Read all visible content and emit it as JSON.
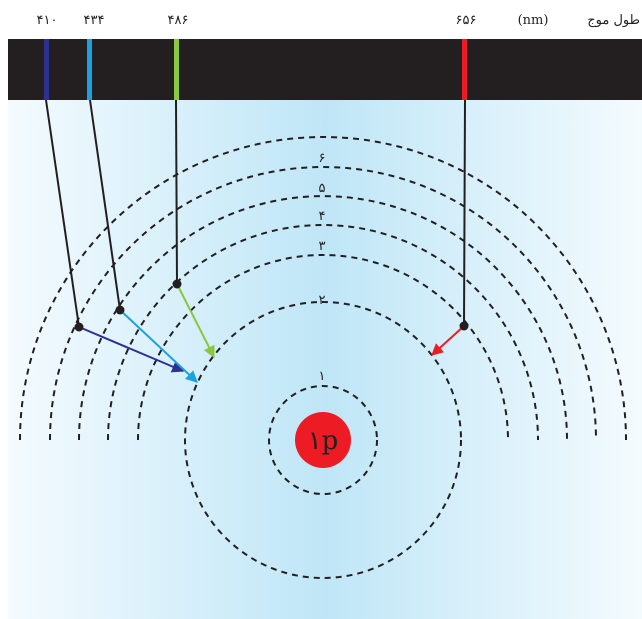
{
  "header": {
    "wavelength_label": "طول موج",
    "unit_label": "(nm)"
  },
  "spectrum": {
    "lines": [
      {
        "wavelength": "۴۱۰",
        "color": "#2e3192"
      },
      {
        "wavelength": "۴۳۴",
        "color": "#1ba1e2"
      },
      {
        "wavelength": "۴۸۶",
        "color": "#8dc63f"
      },
      {
        "wavelength": "۶۵۶",
        "color": "#ed1c24"
      }
    ]
  },
  "levels": {
    "n1": "۱",
    "n2": "۲",
    "n3": "۳",
    "n4": "۴",
    "n5": "۵",
    "n6": "۶"
  },
  "nucleus": {
    "label": "۱p",
    "color": "#ed1c24"
  },
  "colors": {
    "strip": "#231f20",
    "background_center": "#bfe6f7",
    "background_edge": "#eef8fd"
  }
}
